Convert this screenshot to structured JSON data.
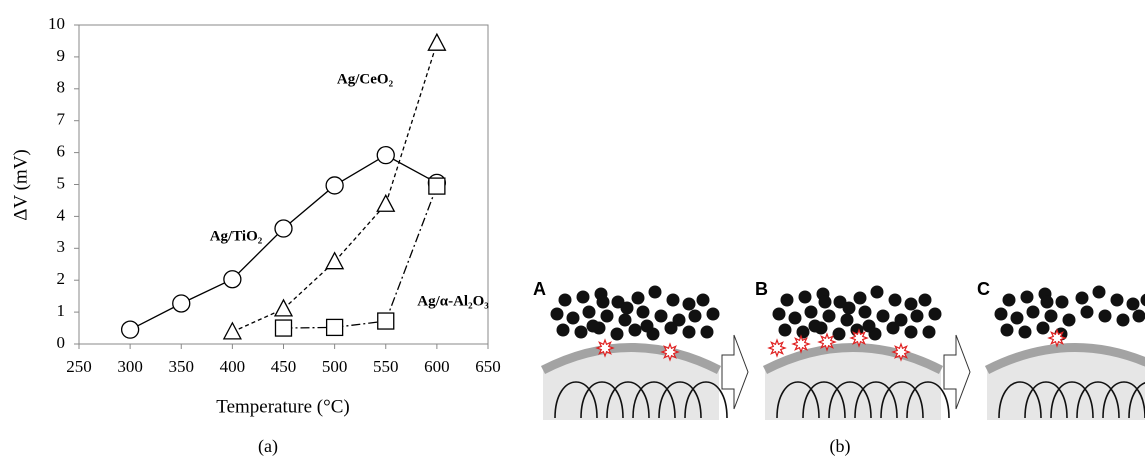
{
  "chart_data": {
    "type": "line",
    "x_label": "Temperature (°C)",
    "y_label": "ΔV (mV)",
    "caption": "(a)",
    "xlim": [
      250,
      650
    ],
    "xticks": [
      250,
      300,
      350,
      400,
      450,
      500,
      550,
      600,
      650
    ],
    "ylim": [
      0,
      10
    ],
    "yticks": [
      0,
      1,
      2,
      3,
      4,
      5,
      6,
      7,
      8,
      9,
      10
    ],
    "grid": false,
    "series": [
      {
        "name": "Ag/TiO₂",
        "color": "#000000",
        "marker": "circle",
        "line_style": "solid",
        "x": [
          300,
          350,
          400,
          450,
          500,
          550,
          600
        ],
        "values": [
          0.45,
          1.27,
          2.03,
          3.62,
          4.97,
          5.92,
          5.05
        ]
      },
      {
        "name": "Ag/CeO₂",
        "color": "#000000",
        "marker": "triangle",
        "line_style": "dashed",
        "x": [
          400,
          450,
          500,
          550,
          600
        ],
        "values": [
          0.38,
          1.1,
          2.58,
          4.38,
          9.43
        ]
      },
      {
        "name": "Ag/α-Al₂O₃",
        "color": "#000000",
        "marker": "square",
        "line_style": "dashdot",
        "x": [
          450,
          500,
          550,
          600
        ],
        "values": [
          0.5,
          0.52,
          0.72,
          4.95
        ]
      }
    ]
  },
  "diagram": {
    "panels": [
      {
        "label": "A"
      },
      {
        "label": "B"
      },
      {
        "label": "C"
      }
    ],
    "caption": "(b)"
  }
}
